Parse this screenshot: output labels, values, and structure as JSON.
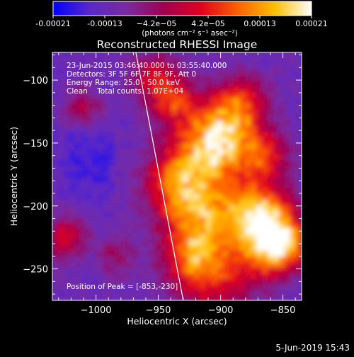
{
  "chart_data": {
    "type": "heatmap",
    "title": "Reconstructed RHESSI Image",
    "xlabel": "Heliocentric X (arcsec)",
    "ylabel": "Heliocentric Y (arcsec)",
    "xlim": [
      -1035,
      -835
    ],
    "ylim": [
      -275,
      -78
    ],
    "x_ticks": [
      -1000,
      -950,
      -900,
      -850
    ],
    "x_tick_labels": [
      "−1000",
      "−950",
      "−900",
      "−850"
    ],
    "y_ticks": [
      -100,
      -150,
      -200,
      -250
    ],
    "y_tick_labels": [
      "−100",
      "−150",
      "−200",
      "−250"
    ],
    "colorbar": {
      "min": -0.00021,
      "max": 0.00021,
      "tick_labels": [
        "-0.00021",
        "-0.00013",
        "−4.2e−05",
        "4.2e−05",
        "0.00013",
        "0.00021"
      ],
      "unit_label": "(photons cm⁻² s⁻¹ asec⁻²)",
      "colors": [
        "#0000ff",
        "#5a28c8",
        "#7a2aa0",
        "#a00050",
        "#e0001e",
        "#ff6000",
        "#ffc000",
        "#ffffff"
      ]
    },
    "annotations": [
      "23-Jun-2015 03:46:40.000 to 03:55:40.000",
      "Detectors: 3F 5F 6F 7F 8F 9F, Att 0",
      "Energy Range: 25.0 - 50.0 keV",
      "Clean    Total counts: 1.07E+04"
    ],
    "peak_label": "Position of Peak = [-853,-230]",
    "peak": [
      -853,
      -230
    ],
    "limb_line": [
      [
        -968,
        -78
      ],
      [
        -930,
        -275
      ]
    ]
  },
  "footer_date": "5-Jun-2019 15:43"
}
